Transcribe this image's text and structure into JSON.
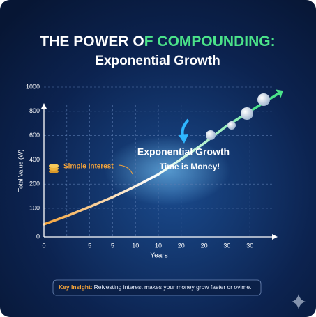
{
  "chart_data": {
    "type": "line",
    "title_white": "THE POWER O",
    "title_green": "F COMPOUNDING:",
    "subtitle": "Exponential Growth",
    "y_label": "Total Value (W)",
    "x_label": "Years",
    "categories": [
      "0",
      null,
      "5",
      "5",
      "10",
      "10",
      "20",
      "20",
      "30",
      "30"
    ],
    "series": [
      {
        "name": "Simple Interest",
        "color": "#f5a43a",
        "values": [
          44,
          73,
          106,
          146,
          191,
          280,
          406,
          537,
          682,
          800
        ]
      }
    ],
    "growth_color": "#4be38a",
    "ylim": [
      0,
      1000
    ],
    "yticks": [
      0,
      100,
      200,
      400,
      600,
      800,
      1000
    ],
    "grid": true,
    "annotations": {
      "growth": "Exponential Growth",
      "motto": "Time is Money!"
    },
    "insight": {
      "label": "Key Insight:",
      "text": "Reivesting interest makes your money grow faster or ovime."
    }
  }
}
